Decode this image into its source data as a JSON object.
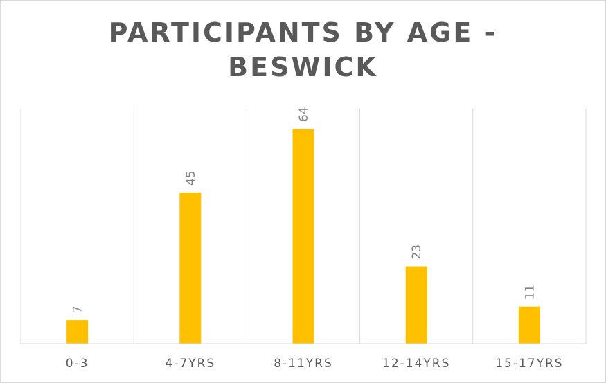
{
  "chart_data": {
    "type": "bar",
    "title_lines": [
      "PARTICIPANTS BY AGE -",
      "BESWICK"
    ],
    "categories": [
      "0-3",
      "4-7YRS",
      "8-11YRS",
      "12-14YRS",
      "15-17YRS"
    ],
    "values": [
      7,
      45,
      64,
      23,
      11
    ],
    "data_labels": [
      "7",
      "45",
      "64",
      "23",
      "11"
    ],
    "xlabel": "",
    "ylabel": "",
    "ylim": [
      0,
      72
    ],
    "grid": "vertical category separators",
    "legend": "none",
    "data_label_rotation": "vertical",
    "colors": {
      "bar": "#ffc000",
      "grid": "#d9d9d9",
      "title": "#595959",
      "tick_label": "#595959",
      "data_label": "#7f7f7f"
    }
  }
}
